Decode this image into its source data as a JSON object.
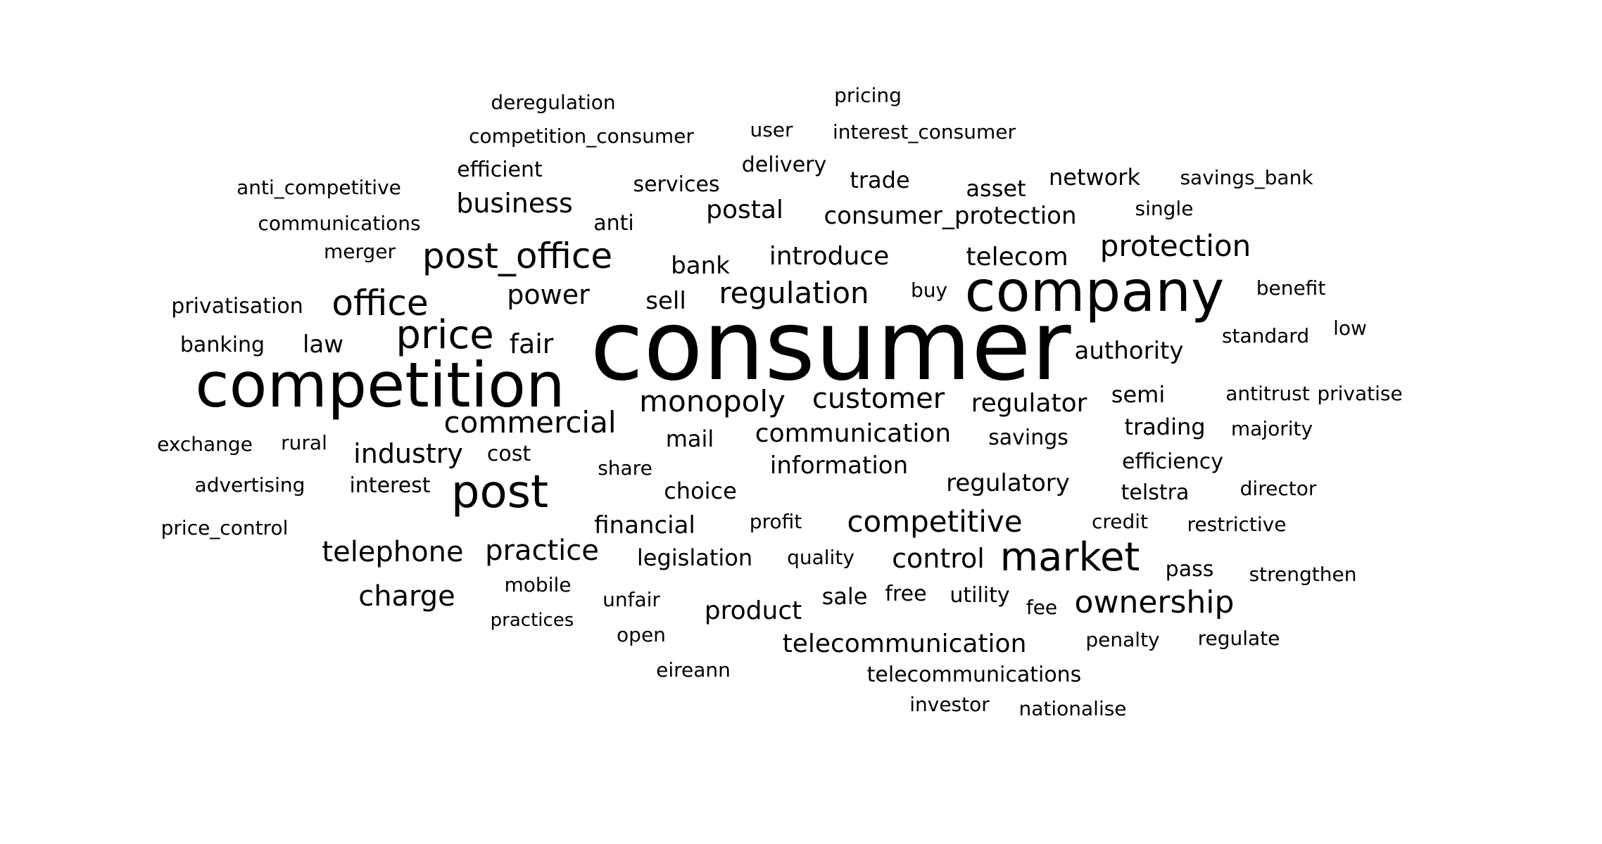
{
  "word_cloud": {
    "words": [
      {
        "text": "consumer",
        "weight": 100
      },
      {
        "text": "competition",
        "weight": 76
      },
      {
        "text": "company",
        "weight": 72
      },
      {
        "text": "post",
        "weight": 60
      },
      {
        "text": "market",
        "weight": 55
      },
      {
        "text": "price",
        "weight": 52
      },
      {
        "text": "post_office",
        "weight": 50
      },
      {
        "text": "office",
        "weight": 50
      },
      {
        "text": "protection",
        "weight": 45
      },
      {
        "text": "ownership",
        "weight": 45
      },
      {
        "text": "commercial",
        "weight": 44
      },
      {
        "text": "monopoly",
        "weight": 44
      },
      {
        "text": "regulation",
        "weight": 44
      },
      {
        "text": "customer",
        "weight": 42
      },
      {
        "text": "competitive",
        "weight": 44
      },
      {
        "text": "telephone",
        "weight": 42
      },
      {
        "text": "practice",
        "weight": 42
      },
      {
        "text": "charge",
        "weight": 42
      },
      {
        "text": "industry",
        "weight": 40
      },
      {
        "text": "business",
        "weight": 40
      },
      {
        "text": "power",
        "weight": 40
      },
      {
        "text": "fair",
        "weight": 40
      },
      {
        "text": "control",
        "weight": 40
      },
      {
        "text": "communication",
        "weight": 38
      },
      {
        "text": "regulator",
        "weight": 38
      },
      {
        "text": "product",
        "weight": 38
      },
      {
        "text": "telecommunication",
        "weight": 38
      },
      {
        "text": "postal",
        "weight": 38
      },
      {
        "text": "introduce",
        "weight": 38
      },
      {
        "text": "telecom",
        "weight": 38
      },
      {
        "text": "consumer_protection",
        "weight": 36
      },
      {
        "text": "authority",
        "weight": 36
      },
      {
        "text": "information",
        "weight": 36
      },
      {
        "text": "financial",
        "weight": 36
      },
      {
        "text": "regulatory",
        "weight": 36
      },
      {
        "text": "bank",
        "weight": 36
      },
      {
        "text": "sell",
        "weight": 36
      },
      {
        "text": "law",
        "weight": 36
      },
      {
        "text": "choice",
        "weight": 34
      },
      {
        "text": "mail",
        "weight": 34
      },
      {
        "text": "legislation",
        "weight": 34
      },
      {
        "text": "sale",
        "weight": 34
      },
      {
        "text": "trading",
        "weight": 34
      },
      {
        "text": "semi",
        "weight": 34
      },
      {
        "text": "network",
        "weight": 34
      },
      {
        "text": "trade",
        "weight": 34
      },
      {
        "text": "asset",
        "weight": 34
      },
      {
        "text": "services",
        "weight": 32
      },
      {
        "text": "delivery",
        "weight": 32
      },
      {
        "text": "efficient",
        "weight": 32
      },
      {
        "text": "privatisation",
        "weight": 32
      },
      {
        "text": "banking",
        "weight": 32
      },
      {
        "text": "cost",
        "weight": 32
      },
      {
        "text": "interest",
        "weight": 32
      },
      {
        "text": "savings",
        "weight": 32
      },
      {
        "text": "efficiency",
        "weight": 32
      },
      {
        "text": "telstra",
        "weight": 32
      },
      {
        "text": "utility",
        "weight": 32
      },
      {
        "text": "free",
        "weight": 32
      },
      {
        "text": "pass",
        "weight": 32
      },
      {
        "text": "quality",
        "weight": 30
      },
      {
        "text": "unfair",
        "weight": 30
      },
      {
        "text": "mobile",
        "weight": 30
      },
      {
        "text": "share",
        "weight": 30
      },
      {
        "text": "rural",
        "weight": 30
      },
      {
        "text": "advertising",
        "weight": 30
      },
      {
        "text": "exchange",
        "weight": 30
      },
      {
        "text": "price_control",
        "weight": 30
      },
      {
        "text": "communications",
        "weight": 30
      },
      {
        "text": "anti_competitive",
        "weight": 30
      },
      {
        "text": "competition_consumer",
        "weight": 30
      },
      {
        "text": "deregulation",
        "weight": 30
      },
      {
        "text": "interest_consumer",
        "weight": 30
      },
      {
        "text": "pricing",
        "weight": 30
      },
      {
        "text": "user",
        "weight": 30
      },
      {
        "text": "anti",
        "weight": 32
      },
      {
        "text": "merger",
        "weight": 30
      },
      {
        "text": "buy",
        "weight": 30
      },
      {
        "text": "standard",
        "weight": 30
      },
      {
        "text": "benefit",
        "weight": 30
      },
      {
        "text": "low",
        "weight": 30
      },
      {
        "text": "single",
        "weight": 30
      },
      {
        "text": "savings_bank",
        "weight": 30
      },
      {
        "text": "antitrust",
        "weight": 30
      },
      {
        "text": "privatise",
        "weight": 30
      },
      {
        "text": "majority",
        "weight": 30
      },
      {
        "text": "director",
        "weight": 30
      },
      {
        "text": "restrictive",
        "weight": 30
      },
      {
        "text": "credit",
        "weight": 30
      },
      {
        "text": "profit",
        "weight": 30
      },
      {
        "text": "strengthen",
        "weight": 30
      },
      {
        "text": "fee",
        "weight": 30
      },
      {
        "text": "penalty",
        "weight": 30
      },
      {
        "text": "regulate",
        "weight": 30
      },
      {
        "text": "practices",
        "weight": 28
      },
      {
        "text": "open",
        "weight": 30
      },
      {
        "text": "eireann",
        "weight": 30
      },
      {
        "text": "telecommunications",
        "weight": 32
      },
      {
        "text": "investor",
        "weight": 30
      },
      {
        "text": "nationalise",
        "weight": 30
      }
    ]
  }
}
